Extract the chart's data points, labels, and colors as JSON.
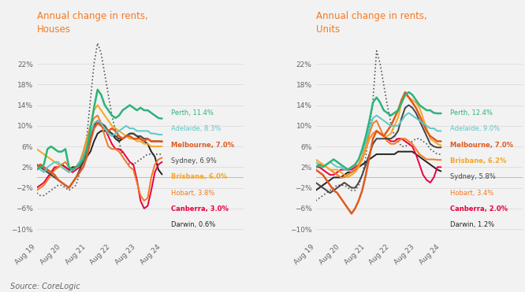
{
  "title_houses": "Annual change in rents,\nHouses",
  "title_units": "Annual change in rents,\nUnits",
  "title_color": "#F47920",
  "background_color": "#F2F2F2",
  "source_text": "Source: CoreLogic",
  "x_labels": [
    "Aug 19",
    "Aug 20",
    "Aug 21",
    "Aug 22",
    "Aug 23",
    "Aug 24"
  ],
  "yticks": [
    -10,
    -6,
    -2,
    2,
    6,
    10,
    14,
    18,
    22
  ],
  "ylim": [
    -12,
    27
  ],
  "houses": {
    "Perth": {
      "color": "#2DB37A",
      "label": "Perth, 11.4%",
      "lw": 1.8,
      "bold": false,
      "y": [
        1.5,
        2.0,
        2.5,
        5.5,
        6.0,
        5.5,
        5.0,
        5.0,
        5.5,
        2.0,
        1.5,
        2.0,
        2.5,
        3.5,
        5.5,
        9.5,
        13.5,
        17.0,
        16.0,
        14.0,
        13.0,
        12.0,
        11.5,
        12.0,
        13.0,
        13.5,
        14.0,
        13.5,
        13.0,
        13.5,
        13.0,
        13.0,
        12.5,
        12.0,
        11.5,
        11.4
      ]
    },
    "Adelaide": {
      "color": "#5BC8C8",
      "label": "Adelaide, 8.3%",
      "lw": 1.4,
      "bold": false,
      "y": [
        2.0,
        1.5,
        1.0,
        2.0,
        2.5,
        3.0,
        3.0,
        2.0,
        1.5,
        1.0,
        1.5,
        2.0,
        3.0,
        4.0,
        6.0,
        8.5,
        10.5,
        11.0,
        10.5,
        9.5,
        8.5,
        8.0,
        8.5,
        9.0,
        9.5,
        10.0,
        9.5,
        9.5,
        9.0,
        9.0,
        9.0,
        9.0,
        8.5,
        8.5,
        8.3,
        8.3
      ]
    },
    "Melbourne": {
      "color": "#E05A1E",
      "label": "Melbourne, 7.0%",
      "lw": 1.8,
      "bold": true,
      "y": [
        2.0,
        2.5,
        2.0,
        1.5,
        1.0,
        0.5,
        -0.5,
        -1.0,
        -1.5,
        -2.0,
        -1.0,
        0.0,
        1.0,
        2.0,
        4.0,
        7.0,
        9.5,
        10.5,
        10.0,
        9.5,
        9.0,
        9.5,
        9.0,
        8.0,
        7.5,
        8.0,
        8.0,
        7.5,
        7.5,
        7.5,
        7.0,
        7.5,
        7.0,
        7.0,
        7.0,
        7.0
      ]
    },
    "Sydney": {
      "color": "#444444",
      "label": "Sydney, 6.9%",
      "lw": 1.4,
      "bold": false,
      "y": [
        2.5,
        2.0,
        1.5,
        1.0,
        0.5,
        0.0,
        -0.5,
        -1.0,
        -1.5,
        -2.0,
        -1.0,
        0.0,
        1.5,
        3.0,
        5.0,
        8.0,
        10.0,
        10.5,
        10.5,
        10.0,
        9.0,
        8.5,
        8.0,
        7.5,
        7.5,
        8.0,
        8.5,
        8.5,
        8.0,
        8.0,
        7.5,
        7.5,
        7.0,
        7.0,
        7.0,
        6.9
      ]
    },
    "Brisbane": {
      "color": "#F5A623",
      "label": "Brisbane, 6.0%",
      "lw": 1.4,
      "bold": true,
      "y": [
        5.5,
        5.0,
        4.5,
        4.0,
        3.5,
        3.0,
        2.5,
        2.0,
        1.5,
        1.0,
        1.5,
        2.0,
        2.5,
        4.5,
        7.0,
        10.0,
        13.0,
        14.0,
        13.0,
        12.0,
        11.0,
        10.0,
        9.5,
        9.0,
        8.5,
        8.0,
        7.5,
        7.5,
        7.0,
        7.0,
        6.5,
        6.5,
        6.0,
        6.0,
        6.0,
        6.0
      ]
    },
    "Hobart": {
      "color": "#F47920",
      "label": "Hobart, 3.8%",
      "lw": 1.4,
      "bold": false,
      "y": [
        -2.5,
        -2.0,
        -1.5,
        -0.5,
        0.5,
        1.5,
        2.0,
        2.5,
        3.0,
        2.0,
        1.5,
        2.0,
        3.0,
        5.0,
        7.5,
        10.0,
        11.5,
        12.0,
        10.5,
        8.0,
        6.0,
        5.5,
        5.5,
        5.0,
        4.0,
        3.0,
        2.0,
        1.5,
        -1.0,
        -3.5,
        -4.5,
        -4.0,
        0.0,
        2.5,
        3.5,
        3.8
      ]
    },
    "Canberra": {
      "color": "#E8003D",
      "label": "Canberra, 3.0%",
      "lw": 1.4,
      "bold": true,
      "y": [
        -2.0,
        -1.5,
        -1.0,
        0.0,
        1.0,
        2.0,
        2.0,
        2.5,
        2.0,
        1.5,
        1.0,
        1.5,
        2.0,
        3.5,
        5.5,
        8.0,
        10.0,
        11.0,
        10.5,
        9.5,
        8.0,
        6.5,
        5.5,
        5.5,
        5.0,
        4.0,
        3.0,
        2.5,
        -0.5,
        -4.5,
        -6.0,
        -5.5,
        -2.5,
        1.0,
        2.5,
        3.0
      ]
    },
    "Darwin": {
      "color": "#222222",
      "label": "Darwin, 0.6%",
      "lw": 1.4,
      "bold": false,
      "y": [
        2.0,
        2.5,
        2.0,
        1.5,
        1.0,
        1.5,
        2.0,
        2.5,
        2.0,
        1.5,
        2.0,
        2.0,
        3.0,
        3.5,
        4.0,
        5.0,
        7.0,
        8.5,
        9.0,
        9.0,
        9.0,
        8.5,
        7.5,
        7.0,
        7.5,
        8.0,
        8.5,
        8.5,
        8.0,
        7.5,
        7.0,
        6.5,
        5.0,
        4.0,
        1.5,
        0.6
      ]
    },
    "Dotted": {
      "color": "#555555",
      "label": "",
      "lw": 1.2,
      "bold": false,
      "y": [
        -3.0,
        -3.5,
        -3.5,
        -3.0,
        -2.5,
        -2.0,
        -1.5,
        -1.5,
        -2.0,
        -2.5,
        -2.0,
        -1.5,
        1.0,
        4.0,
        8.0,
        15.0,
        22.0,
        26.0,
        24.0,
        20.0,
        16.0,
        12.0,
        9.0,
        7.0,
        4.0,
        3.0,
        2.5,
        2.5,
        3.0,
        3.5,
        4.0,
        4.5,
        4.5,
        4.5,
        4.5,
        4.5
      ]
    }
  },
  "units": {
    "Perth": {
      "color": "#2DB37A",
      "label": "Perth, 12.4%",
      "lw": 1.8,
      "bold": false,
      "y": [
        2.0,
        2.5,
        2.0,
        2.5,
        3.0,
        3.5,
        3.0,
        2.5,
        2.0,
        1.5,
        2.0,
        2.5,
        3.5,
        5.5,
        8.0,
        11.0,
        14.5,
        15.5,
        14.5,
        13.0,
        12.5,
        12.0,
        12.5,
        13.0,
        14.5,
        16.0,
        16.5,
        16.0,
        15.0,
        14.0,
        13.5,
        13.0,
        13.0,
        12.5,
        12.4,
        12.4
      ]
    },
    "Adelaide": {
      "color": "#5BC8C8",
      "label": "Adelaide, 9.0%",
      "lw": 1.4,
      "bold": false,
      "y": [
        3.0,
        2.5,
        2.0,
        2.5,
        3.0,
        2.5,
        2.0,
        2.0,
        1.5,
        1.5,
        2.0,
        2.5,
        3.5,
        5.0,
        7.0,
        9.5,
        11.5,
        12.0,
        11.5,
        11.0,
        10.5,
        10.0,
        10.0,
        10.0,
        11.0,
        12.0,
        12.5,
        12.0,
        11.5,
        11.0,
        10.5,
        10.0,
        9.5,
        9.5,
        9.0,
        9.0
      ]
    },
    "Melbourne": {
      "color": "#E05A1E",
      "label": "Melbourne, 7.0%",
      "lw": 1.8,
      "bold": true,
      "y": [
        1.5,
        1.0,
        0.5,
        -0.5,
        -1.5,
        -2.5,
        -3.0,
        -4.0,
        -5.0,
        -6.0,
        -7.0,
        -6.0,
        -4.5,
        -2.5,
        0.5,
        4.0,
        7.5,
        9.0,
        8.5,
        8.0,
        9.0,
        10.0,
        11.5,
        13.0,
        15.0,
        16.5,
        15.5,
        14.5,
        13.5,
        12.0,
        10.5,
        9.0,
        8.0,
        7.5,
        7.0,
        7.0
      ]
    },
    "Brisbane": {
      "color": "#F5A623",
      "label": "Brisbane, 6.2%",
      "lw": 1.4,
      "bold": true,
      "y": [
        3.5,
        3.0,
        2.5,
        2.0,
        1.5,
        1.5,
        1.5,
        1.0,
        0.5,
        0.0,
        0.5,
        1.0,
        2.0,
        3.5,
        5.5,
        7.5,
        8.5,
        9.0,
        8.5,
        8.0,
        8.0,
        8.5,
        10.0,
        11.5,
        14.5,
        16.0,
        15.5,
        15.0,
        14.5,
        13.5,
        11.5,
        9.5,
        7.5,
        7.0,
        6.5,
        6.2
      ]
    },
    "Sydney": {
      "color": "#444444",
      "label": "Sydney, 5.8%",
      "lw": 1.4,
      "bold": false,
      "y": [
        -1.0,
        -1.5,
        -2.0,
        -2.5,
        -3.0,
        -2.5,
        -2.0,
        -1.5,
        -1.0,
        -1.5,
        -2.0,
        -2.0,
        -1.0,
        0.5,
        2.5,
        4.5,
        6.5,
        7.5,
        7.5,
        7.5,
        7.5,
        7.5,
        8.0,
        9.0,
        11.5,
        13.5,
        14.0,
        13.5,
        12.5,
        11.0,
        9.5,
        8.0,
        6.5,
        6.0,
        5.8,
        5.8
      ]
    },
    "Hobart": {
      "color": "#F47920",
      "label": "Hobart, 3.4%",
      "lw": 1.4,
      "bold": false,
      "y": [
        2.0,
        2.5,
        2.5,
        2.0,
        1.5,
        1.0,
        0.5,
        0.0,
        0.0,
        0.5,
        1.0,
        1.5,
        2.5,
        4.0,
        6.0,
        8.5,
        10.5,
        11.0,
        9.5,
        8.0,
        7.0,
        6.5,
        6.5,
        7.0,
        7.5,
        7.5,
        7.0,
        6.5,
        5.5,
        4.5,
        4.0,
        3.5,
        3.5,
        3.5,
        3.4,
        3.4
      ]
    },
    "Canberra": {
      "color": "#E8003D",
      "label": "Canberra, 2.0%",
      "lw": 1.4,
      "bold": true,
      "y": [
        2.0,
        2.0,
        1.5,
        1.0,
        0.5,
        0.5,
        1.0,
        1.5,
        1.5,
        1.5,
        1.5,
        2.0,
        2.5,
        3.5,
        5.5,
        7.5,
        8.5,
        9.0,
        8.5,
        8.0,
        7.5,
        7.0,
        7.0,
        7.5,
        7.5,
        7.0,
        6.5,
        6.0,
        4.5,
        2.5,
        0.5,
        -0.5,
        -1.0,
        0.0,
        2.0,
        2.0
      ]
    },
    "Darwin": {
      "color": "#222222",
      "label": "Darwin, 1.2%",
      "lw": 1.4,
      "bold": false,
      "y": [
        -2.5,
        -2.0,
        -1.5,
        -1.0,
        -0.5,
        0.0,
        0.0,
        0.0,
        0.5,
        1.0,
        1.0,
        1.5,
        2.0,
        2.5,
        3.0,
        3.5,
        4.0,
        4.5,
        4.5,
        4.5,
        4.5,
        4.5,
        4.5,
        5.0,
        5.0,
        5.0,
        5.0,
        5.0,
        4.5,
        4.0,
        3.5,
        3.0,
        2.5,
        2.0,
        1.5,
        1.2
      ]
    },
    "Dotted": {
      "color": "#555555",
      "label": "",
      "lw": 1.2,
      "bold": false,
      "y": [
        -4.5,
        -4.0,
        -3.5,
        -3.0,
        -2.5,
        -2.0,
        -1.5,
        -1.5,
        -1.5,
        -2.0,
        -2.5,
        -2.5,
        -1.5,
        0.5,
        4.0,
        9.5,
        15.0,
        24.5,
        22.0,
        18.0,
        14.0,
        10.5,
        8.0,
        7.0,
        6.0,
        6.0,
        6.5,
        7.0,
        7.5,
        7.5,
        7.0,
        6.5,
        5.5,
        5.0,
        4.5,
        4.5
      ]
    }
  },
  "legend_houses_order": [
    "Perth",
    "Adelaide",
    "Melbourne",
    "Sydney",
    "Brisbane",
    "Hobart",
    "Canberra",
    "Darwin"
  ],
  "legend_units_order": [
    "Perth",
    "Adelaide",
    "Melbourne",
    "Brisbane",
    "Sydney",
    "Hobart",
    "Canberra",
    "Darwin"
  ]
}
